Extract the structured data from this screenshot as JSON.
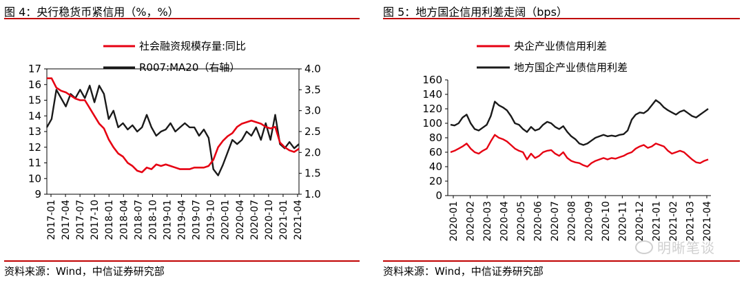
{
  "left_panel": {
    "title": "图 4：央行稳货币紧信用（%，%）",
    "source": "资料来源：Wind，中信证券研究部"
  },
  "right_panel": {
    "title": "图 5：地方国企信用利差走阔（bps）",
    "source": "资料来源：Wind，中信证券研究部"
  },
  "watermark": "明晰笔谈",
  "chart_data": [
    {
      "type": "line",
      "x_tick_labels": [
        "2017-01",
        "2017-04",
        "2017-07",
        "2017-10",
        "2018-01",
        "2018-04",
        "2018-07",
        "2018-10",
        "2019-01",
        "2019-04",
        "2019-07",
        "2019-10",
        "2020-01",
        "2020-04",
        "2020-07",
        "2020-10",
        "2021-01",
        "2021-04"
      ],
      "ylim": [
        9,
        17
      ],
      "yticks": [
        9,
        10,
        11,
        12,
        13,
        14,
        15,
        16,
        17
      ],
      "y2lim": [
        1.0,
        4.0
      ],
      "y2ticks": [
        "1.0",
        "1.5",
        "2.0",
        "2.5",
        "3.0",
        "3.5",
        "4.0"
      ],
      "legend_position": "top",
      "colors": {
        "series1": "#e60012",
        "series2": "#1a1a1a"
      },
      "series": [
        {
          "name": "社会融资规模存量:同比",
          "axis": "left",
          "x": [
            0,
            1,
            2,
            3,
            4,
            5,
            6,
            7,
            8,
            9,
            10,
            11,
            12,
            13,
            14,
            15,
            16,
            17,
            18,
            19,
            20,
            21,
            22,
            23,
            24,
            25,
            26,
            27,
            28,
            29,
            30,
            31,
            32,
            33,
            34,
            35,
            36,
            37,
            38,
            39,
            40,
            41,
            42,
            43,
            44,
            45,
            46,
            47,
            48,
            49,
            50,
            51,
            52,
            53
          ],
          "values": [
            16.4,
            16.4,
            15.8,
            15.6,
            15.5,
            15.3,
            15.1,
            15.0,
            15.0,
            14.5,
            14.0,
            13.5,
            13.2,
            12.5,
            12.0,
            11.6,
            11.4,
            11.0,
            10.8,
            10.5,
            10.4,
            10.7,
            10.6,
            10.9,
            10.8,
            10.9,
            10.8,
            10.7,
            10.6,
            10.6,
            10.6,
            10.7,
            10.7,
            10.7,
            10.8,
            11.2,
            12.0,
            12.4,
            12.7,
            12.9,
            13.3,
            13.5,
            13.6,
            13.7,
            13.6,
            13.5,
            13.3,
            13.2,
            13.3,
            12.3,
            12.0,
            11.8,
            11.7,
            11.9
          ]
        },
        {
          "name": "R007:MA20（右轴）",
          "axis": "right",
          "x": [
            0,
            1,
            2,
            3,
            4,
            5,
            6,
            7,
            8,
            9,
            10,
            11,
            12,
            13,
            14,
            15,
            16,
            17,
            18,
            19,
            20,
            21,
            22,
            23,
            24,
            25,
            26,
            27,
            28,
            29,
            30,
            31,
            32,
            33,
            34,
            35,
            36,
            37,
            38,
            39,
            40,
            41,
            42,
            43,
            44,
            45,
            46,
            47,
            48,
            49,
            50,
            51,
            52,
            53
          ],
          "values": [
            2.6,
            2.8,
            3.5,
            3.3,
            3.1,
            3.4,
            3.3,
            3.5,
            3.3,
            3.6,
            3.2,
            3.6,
            3.4,
            2.8,
            3.0,
            2.6,
            2.7,
            2.55,
            2.65,
            2.5,
            2.6,
            2.9,
            2.6,
            2.4,
            2.5,
            2.55,
            2.7,
            2.5,
            2.6,
            2.7,
            2.6,
            2.6,
            2.4,
            2.55,
            2.35,
            1.6,
            1.45,
            1.7,
            2.0,
            2.3,
            2.2,
            2.3,
            2.5,
            2.4,
            2.6,
            2.3,
            2.7,
            2.3,
            2.9,
            2.2,
            2.1,
            2.25,
            2.1,
            2.2
          ]
        }
      ]
    },
    {
      "type": "line",
      "x_tick_labels": [
        "2020-01",
        "2020-02",
        "2020-03",
        "2020-04",
        "2020-05",
        "2020-06",
        "2020-07",
        "2020-08",
        "2020-09",
        "2020-10",
        "2020-11",
        "2020-12",
        "2021-01",
        "2021-02",
        "2021-03",
        "2021-04"
      ],
      "ylim": [
        0,
        160
      ],
      "yticks": [
        0,
        20,
        40,
        60,
        80,
        100,
        120,
        140,
        160
      ],
      "legend_position": "top-left",
      "colors": {
        "series1": "#e60012",
        "series2": "#1a1a1a"
      },
      "series": [
        {
          "name": "央企产业债信用利差",
          "x": [
            0,
            1,
            2,
            3,
            4,
            5,
            6,
            7,
            8,
            9,
            10,
            11,
            12,
            13,
            14,
            15,
            16,
            17,
            18,
            19,
            20,
            21,
            22,
            23,
            24,
            25,
            26,
            27,
            28,
            29,
            30,
            31,
            32,
            33,
            34,
            35,
            36,
            37,
            38,
            39,
            40,
            41,
            42,
            43,
            44,
            45,
            46,
            47,
            48,
            49,
            50,
            51,
            52,
            53,
            54,
            55,
            56,
            57,
            58,
            59,
            60,
            61,
            62,
            63,
            64
          ],
          "values": [
            60,
            62,
            65,
            68,
            72,
            65,
            60,
            58,
            62,
            65,
            75,
            84,
            80,
            78,
            75,
            70,
            65,
            62,
            60,
            50,
            58,
            52,
            55,
            60,
            62,
            63,
            58,
            55,
            60,
            52,
            48,
            46,
            45,
            42,
            40,
            45,
            48,
            50,
            52,
            50,
            52,
            51,
            53,
            55,
            58,
            60,
            65,
            68,
            70,
            66,
            68,
            72,
            70,
            68,
            62,
            58,
            60,
            62,
            60,
            55,
            50,
            46,
            45,
            48,
            50
          ]
        },
        {
          "name": "地方国企产业债信用利差",
          "x": [
            0,
            1,
            2,
            3,
            4,
            5,
            6,
            7,
            8,
            9,
            10,
            11,
            12,
            13,
            14,
            15,
            16,
            17,
            18,
            19,
            20,
            21,
            22,
            23,
            24,
            25,
            26,
            27,
            28,
            29,
            30,
            31,
            32,
            33,
            34,
            35,
            36,
            37,
            38,
            39,
            40,
            41,
            42,
            43,
            44,
            45,
            46,
            47,
            48,
            49,
            50,
            51,
            52,
            53,
            54,
            55,
            56,
            57,
            58,
            59,
            60,
            61,
            62,
            63,
            64
          ],
          "values": [
            98,
            97,
            100,
            108,
            112,
            100,
            92,
            90,
            94,
            98,
            110,
            130,
            125,
            122,
            118,
            110,
            100,
            98,
            92,
            88,
            95,
            90,
            92,
            98,
            102,
            100,
            95,
            92,
            96,
            88,
            82,
            78,
            72,
            70,
            72,
            76,
            80,
            82,
            84,
            82,
            83,
            82,
            84,
            85,
            90,
            105,
            112,
            115,
            114,
            118,
            125,
            132,
            128,
            122,
            118,
            115,
            112,
            116,
            118,
            114,
            110,
            108,
            112,
            116,
            120
          ]
        }
      ]
    }
  ]
}
